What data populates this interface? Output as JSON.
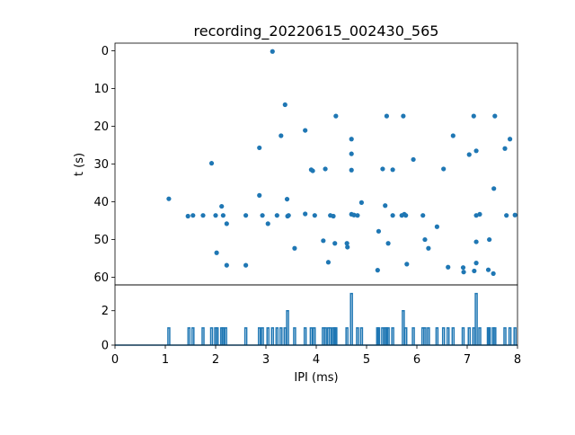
{
  "chart_data": {
    "title": "recording_20220615_002430_565",
    "xlabel": "IPI (ms)",
    "ylabel": "t (s)",
    "color": "#1f77b4",
    "xlim": [
      0,
      8
    ],
    "xticks": [
      "0",
      "1",
      "2",
      "3",
      "4",
      "5",
      "6",
      "7",
      "8"
    ],
    "panels": [
      {
        "type": "scatter",
        "ylim": [
          62,
          -2
        ],
        "y_inverted": true,
        "yticks": [
          "0",
          "10",
          "20",
          "30",
          "40",
          "50",
          "60"
        ],
        "points": [
          [
            1.07,
            39.2
          ],
          [
            1.45,
            43.8
          ],
          [
            1.55,
            43.6
          ],
          [
            1.75,
            43.6
          ],
          [
            1.92,
            29.8
          ],
          [
            2.0,
            43.6
          ],
          [
            2.02,
            53.5
          ],
          [
            2.12,
            41.2
          ],
          [
            2.15,
            43.6
          ],
          [
            2.22,
            45.8
          ],
          [
            2.22,
            56.8
          ],
          [
            2.6,
            43.6
          ],
          [
            2.6,
            56.8
          ],
          [
            2.87,
            25.7
          ],
          [
            2.87,
            38.3
          ],
          [
            2.93,
            43.6
          ],
          [
            3.04,
            45.8
          ],
          [
            3.13,
            0.2
          ],
          [
            3.22,
            43.6
          ],
          [
            3.3,
            22.5
          ],
          [
            3.38,
            14.3
          ],
          [
            3.42,
            39.3
          ],
          [
            3.43,
            43.8
          ],
          [
            3.45,
            43.6
          ],
          [
            3.57,
            52.3
          ],
          [
            3.78,
            21.1
          ],
          [
            3.78,
            43.2
          ],
          [
            3.9,
            31.5
          ],
          [
            3.93,
            31.8
          ],
          [
            3.97,
            43.6
          ],
          [
            4.14,
            50.3
          ],
          [
            4.18,
            31.3
          ],
          [
            4.24,
            56.0
          ],
          [
            4.28,
            43.6
          ],
          [
            4.34,
            43.8
          ],
          [
            4.37,
            51.0
          ],
          [
            4.39,
            17.3
          ],
          [
            4.61,
            51.0
          ],
          [
            4.62,
            52.0
          ],
          [
            4.7,
            23.4
          ],
          [
            4.7,
            27.3
          ],
          [
            4.7,
            31.6
          ],
          [
            4.7,
            43.3
          ],
          [
            4.75,
            43.5
          ],
          [
            4.82,
            43.6
          ],
          [
            4.9,
            40.2
          ],
          [
            5.22,
            58.1
          ],
          [
            5.24,
            47.8
          ],
          [
            5.32,
            31.3
          ],
          [
            5.37,
            41.0
          ],
          [
            5.4,
            17.3
          ],
          [
            5.43,
            51.0
          ],
          [
            5.52,
            31.5
          ],
          [
            5.52,
            43.6
          ],
          [
            5.7,
            43.6
          ],
          [
            5.73,
            17.3
          ],
          [
            5.75,
            43.3
          ],
          [
            5.78,
            43.6
          ],
          [
            5.8,
            56.5
          ],
          [
            5.93,
            28.8
          ],
          [
            6.12,
            43.6
          ],
          [
            6.16,
            50.0
          ],
          [
            6.23,
            52.3
          ],
          [
            6.4,
            46.6
          ],
          [
            6.53,
            31.3
          ],
          [
            6.62,
            57.3
          ],
          [
            6.72,
            22.5
          ],
          [
            6.92,
            57.4
          ],
          [
            6.93,
            58.6
          ],
          [
            7.04,
            27.5
          ],
          [
            7.13,
            17.3
          ],
          [
            7.14,
            58.3
          ],
          [
            7.18,
            26.5
          ],
          [
            7.18,
            43.6
          ],
          [
            7.18,
            50.6
          ],
          [
            7.18,
            56.2
          ],
          [
            7.25,
            43.3
          ],
          [
            7.42,
            58.0
          ],
          [
            7.44,
            50.0
          ],
          [
            7.52,
            59.0
          ],
          [
            7.53,
            36.5
          ],
          [
            7.55,
            17.3
          ],
          [
            7.75,
            25.9
          ],
          [
            7.78,
            43.6
          ],
          [
            7.85,
            23.4
          ],
          [
            7.95,
            43.5
          ]
        ]
      },
      {
        "type": "line",
        "ylim": [
          0,
          3.5
        ],
        "yticks": [
          "0",
          "2"
        ],
        "spikes": [
          [
            1.07,
            1
          ],
          [
            1.47,
            1
          ],
          [
            1.55,
            1
          ],
          [
            1.75,
            1
          ],
          [
            1.92,
            1
          ],
          [
            2.0,
            1
          ],
          [
            2.03,
            1
          ],
          [
            2.12,
            1
          ],
          [
            2.15,
            1
          ],
          [
            2.2,
            1
          ],
          [
            2.6,
            1
          ],
          [
            2.87,
            1
          ],
          [
            2.93,
            1
          ],
          [
            3.04,
            1
          ],
          [
            3.13,
            1
          ],
          [
            3.22,
            1
          ],
          [
            3.3,
            1
          ],
          [
            3.38,
            1
          ],
          [
            3.43,
            2
          ],
          [
            3.57,
            1
          ],
          [
            3.78,
            1
          ],
          [
            3.9,
            1
          ],
          [
            3.96,
            1
          ],
          [
            4.14,
            1
          ],
          [
            4.18,
            1
          ],
          [
            4.24,
            1
          ],
          [
            4.28,
            1
          ],
          [
            4.34,
            1
          ],
          [
            4.37,
            1
          ],
          [
            4.39,
            1
          ],
          [
            4.61,
            1
          ],
          [
            4.7,
            3
          ],
          [
            4.82,
            1
          ],
          [
            4.9,
            1
          ],
          [
            5.22,
            1
          ],
          [
            5.24,
            1
          ],
          [
            5.32,
            1
          ],
          [
            5.37,
            1
          ],
          [
            5.4,
            1
          ],
          [
            5.43,
            1
          ],
          [
            5.52,
            1
          ],
          [
            5.73,
            2
          ],
          [
            5.78,
            1
          ],
          [
            5.93,
            1
          ],
          [
            6.12,
            1
          ],
          [
            6.16,
            1
          ],
          [
            6.23,
            1
          ],
          [
            6.4,
            1
          ],
          [
            6.53,
            1
          ],
          [
            6.62,
            1
          ],
          [
            6.72,
            1
          ],
          [
            6.92,
            1
          ],
          [
            7.04,
            1
          ],
          [
            7.13,
            1
          ],
          [
            7.18,
            3
          ],
          [
            7.25,
            1
          ],
          [
            7.42,
            1
          ],
          [
            7.44,
            1
          ],
          [
            7.52,
            1
          ],
          [
            7.55,
            1
          ],
          [
            7.75,
            1
          ],
          [
            7.85,
            1
          ],
          [
            7.95,
            1
          ]
        ]
      }
    ]
  }
}
